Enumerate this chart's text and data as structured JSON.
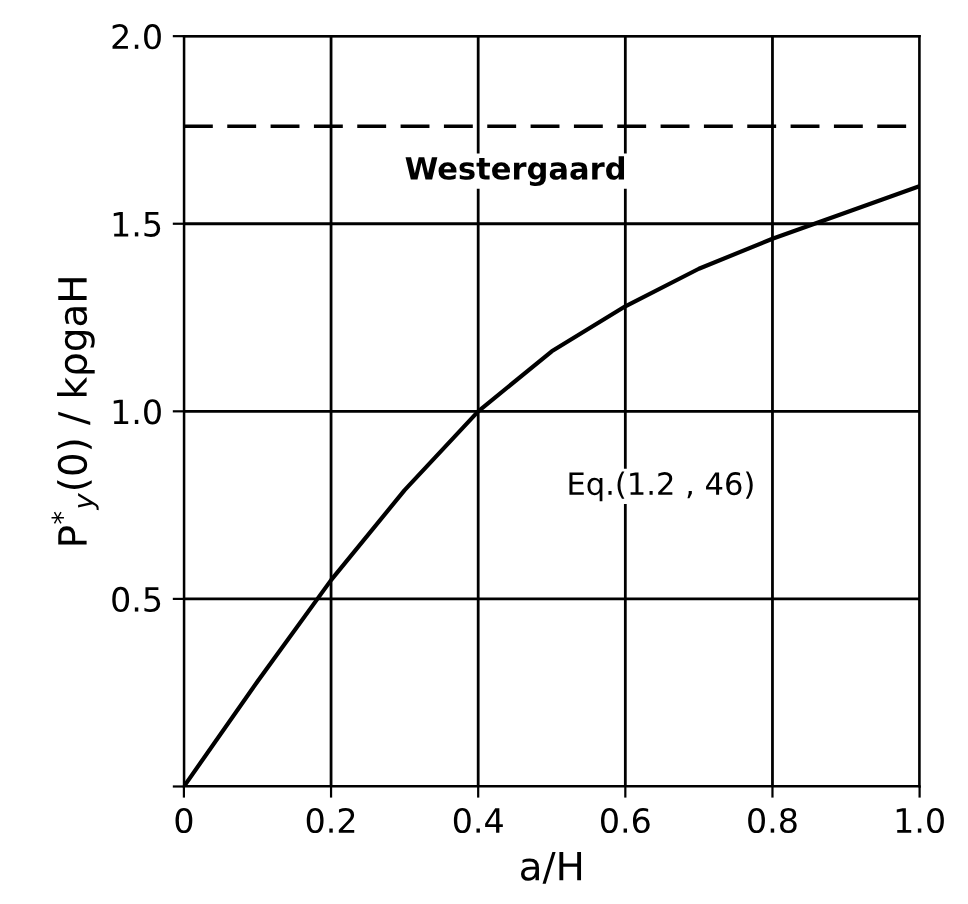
{
  "chart_data": {
    "type": "line",
    "xlabel": "a/H",
    "ylabel": "P$^{*}$$_{y}$(0) / kρgaH",
    "x": [
      0,
      0.1,
      0.2,
      0.3,
      0.4,
      0.5,
      0.6,
      0.7,
      0.8,
      0.9,
      1.0
    ],
    "series": [
      {
        "color": "#000000",
        "values": [
          0,
          0.28,
          0.55,
          0.79,
          1.0,
          1.16,
          1.28,
          1.38,
          1.46,
          1.53,
          1.6
        ]
      }
    ],
    "xlim": [
      0,
      1.0
    ],
    "ylim": [
      0,
      2.0
    ],
    "xticks": [
      0,
      0.2,
      0.4,
      0.6,
      0.8,
      {
        "value": 1,
        "label": "1.0"
      }
    ],
    "yticks": [
      {
        "value": 0,
        "label": null
      },
      0.5,
      {
        "value": 1,
        "label": "1.0"
      },
      1.5,
      {
        "value": 2,
        "label": "2.0"
      }
    ],
    "ref_lines": [
      {
        "axis": "y",
        "value": 1.76,
        "label": "Westergaard",
        "color": "#000000",
        "line_style": "dashed"
      }
    ],
    "annotations": [
      "Eq.(1.2 , 46)"
    ],
    "grid": true,
    "marker": "none",
    "line_style": "solid"
  }
}
